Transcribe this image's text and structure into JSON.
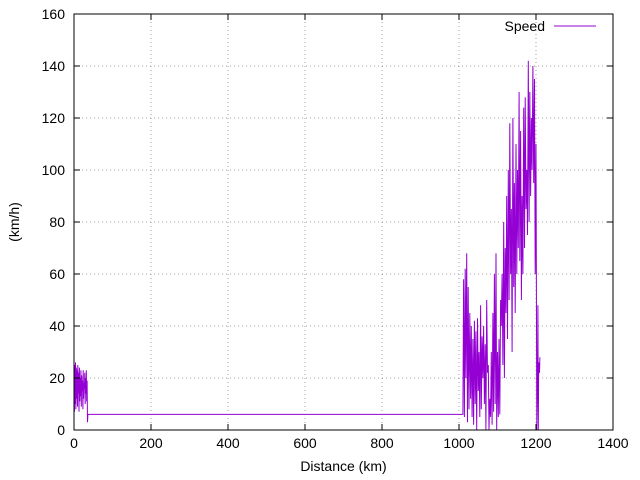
{
  "chart_data": {
    "type": "line",
    "title": "",
    "xlabel": "Distance (km)",
    "ylabel": "(km/h)",
    "xlim": [
      0,
      1400
    ],
    "ylim": [
      0,
      160
    ],
    "xticks": [
      0,
      200,
      400,
      600,
      800,
      1000,
      1200,
      1400
    ],
    "yticks": [
      0,
      20,
      40,
      60,
      80,
      100,
      120,
      140,
      160
    ],
    "xtick_labels": [
      "0",
      "200",
      "400",
      "600",
      "800",
      "1000",
      "1200",
      "1400"
    ],
    "ytick_labels": [
      "0",
      "20",
      "40",
      "60",
      "80",
      "100",
      "120",
      "140",
      "160"
    ],
    "grid": true,
    "legend_position": "top-right",
    "series": [
      {
        "name": "Speed",
        "color": "#9400d3",
        "x": [
          0,
          1,
          2,
          3,
          4,
          5,
          6,
          7,
          8,
          9,
          10,
          11,
          12,
          13,
          14,
          15,
          16,
          17,
          18,
          19,
          20,
          21,
          22,
          23,
          24,
          25,
          26,
          27,
          28,
          29,
          30,
          31,
          32,
          33,
          34,
          35,
          36,
          1010,
          1012,
          1014,
          1016,
          1018,
          1020,
          1022,
          1024,
          1026,
          1028,
          1030,
          1032,
          1034,
          1036,
          1038,
          1040,
          1042,
          1044,
          1046,
          1048,
          1050,
          1052,
          1054,
          1056,
          1058,
          1060,
          1062,
          1064,
          1066,
          1068,
          1070,
          1072,
          1074,
          1076,
          1078,
          1080,
          1082,
          1084,
          1086,
          1088,
          1090,
          1092,
          1094,
          1096,
          1098,
          1100,
          1102,
          1104,
          1106,
          1108,
          1110,
          1112,
          1114,
          1116,
          1118,
          1120,
          1122,
          1124,
          1126,
          1128,
          1130,
          1132,
          1134,
          1136,
          1138,
          1140,
          1142,
          1144,
          1146,
          1148,
          1150,
          1152,
          1154,
          1156,
          1158,
          1160,
          1162,
          1164,
          1166,
          1168,
          1170,
          1172,
          1174,
          1176,
          1178,
          1180,
          1182,
          1184,
          1186,
          1188,
          1190,
          1192,
          1194,
          1196,
          1198,
          1200,
          1202,
          1204,
          1205,
          1206,
          1207,
          1208,
          1209,
          1210
        ],
        "y": [
          22,
          7,
          25,
          10,
          26,
          8,
          24,
          12,
          23,
          9,
          25,
          14,
          22,
          7,
          24,
          11,
          20,
          13,
          23,
          9,
          21,
          15,
          19,
          8,
          23,
          12,
          18,
          16,
          22,
          10,
          20,
          14,
          23,
          11,
          19,
          3,
          6,
          6,
          58,
          5,
          62,
          20,
          68,
          3,
          55,
          8,
          45,
          12,
          40,
          5,
          35,
          2,
          42,
          10,
          38,
          0,
          43,
          15,
          30,
          5,
          48,
          8,
          36,
          20,
          40,
          10,
          33,
          0,
          50,
          22,
          25,
          0,
          12,
          5,
          30,
          2,
          45,
          7,
          60,
          10,
          68,
          0,
          30,
          5,
          35,
          6,
          50,
          40,
          60,
          25,
          80,
          20,
          70,
          45,
          90,
          35,
          100,
          50,
          118,
          60,
          85,
          30,
          120,
          55,
          95,
          45,
          110,
          60,
          100,
          70,
          130,
          65,
          115,
          50,
          90,
          60,
          124,
          70,
          128,
          85,
          100,
          75,
          142,
          80,
          130,
          90,
          120,
          100,
          140,
          95,
          135,
          60,
          110,
          0,
          20,
          48,
          0,
          26,
          24,
          22,
          28
        ]
      }
    ]
  }
}
